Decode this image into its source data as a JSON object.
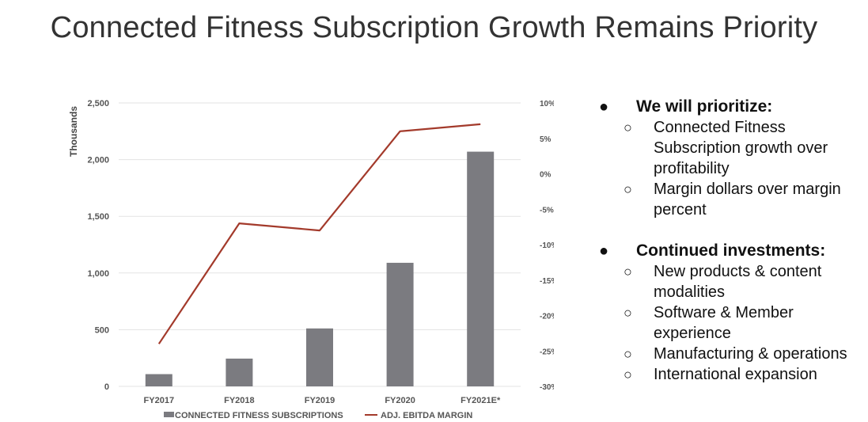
{
  "slide": {
    "title": "Connected Fitness Subscription Growth Remains Priority"
  },
  "colors": {
    "bar": "#7b7b80",
    "line": "#a33a2b",
    "grid": "#e3e3e3",
    "tick_text": "#555555"
  },
  "chart_data": {
    "type": "bar",
    "categories": [
      "FY2017",
      "FY2018",
      "FY2019",
      "FY2020",
      "FY2021E*"
    ],
    "series": [
      {
        "name": "CONNECTED FITNESS SUBSCRIPTIONS",
        "type": "bar",
        "axis": "left",
        "values": [
          108,
          245,
          511,
          1090,
          2070
        ]
      },
      {
        "name": "ADJ. EBITDA MARGIN",
        "type": "line",
        "axis": "right",
        "values": [
          -24,
          -7,
          -8,
          6,
          7
        ]
      }
    ],
    "ylabel": "Thousands",
    "ylim": [
      0,
      2500
    ],
    "yticks": [
      0,
      500,
      1000,
      1500,
      2000,
      2500
    ],
    "ytick_labels": [
      "0",
      "500",
      "1,000",
      "1,500",
      "2,000",
      "2,500"
    ],
    "y2lim": [
      -30,
      10
    ],
    "y2ticks": [
      -30,
      -25,
      -20,
      -15,
      -10,
      -5,
      0,
      5,
      10
    ],
    "y2tick_labels": [
      "-30%",
      "-25%",
      "-20%",
      "-15%",
      "-10%",
      "-5%",
      "0%",
      "5%",
      "10%"
    ],
    "grid": true,
    "legend_position": "bottom"
  },
  "bullets": [
    {
      "marker": "●",
      "text": "We will prioritize:",
      "sub_marker": "○",
      "items": [
        "Connected Fitness Subscription growth over profitability",
        "Margin dollars over margin percent"
      ]
    },
    {
      "marker": "●",
      "text": "Continued investments:",
      "sub_marker": "○",
      "items": [
        "New products & content modalities",
        "Software & Member experience",
        "Manufacturing & operations",
        "International expansion"
      ]
    }
  ]
}
